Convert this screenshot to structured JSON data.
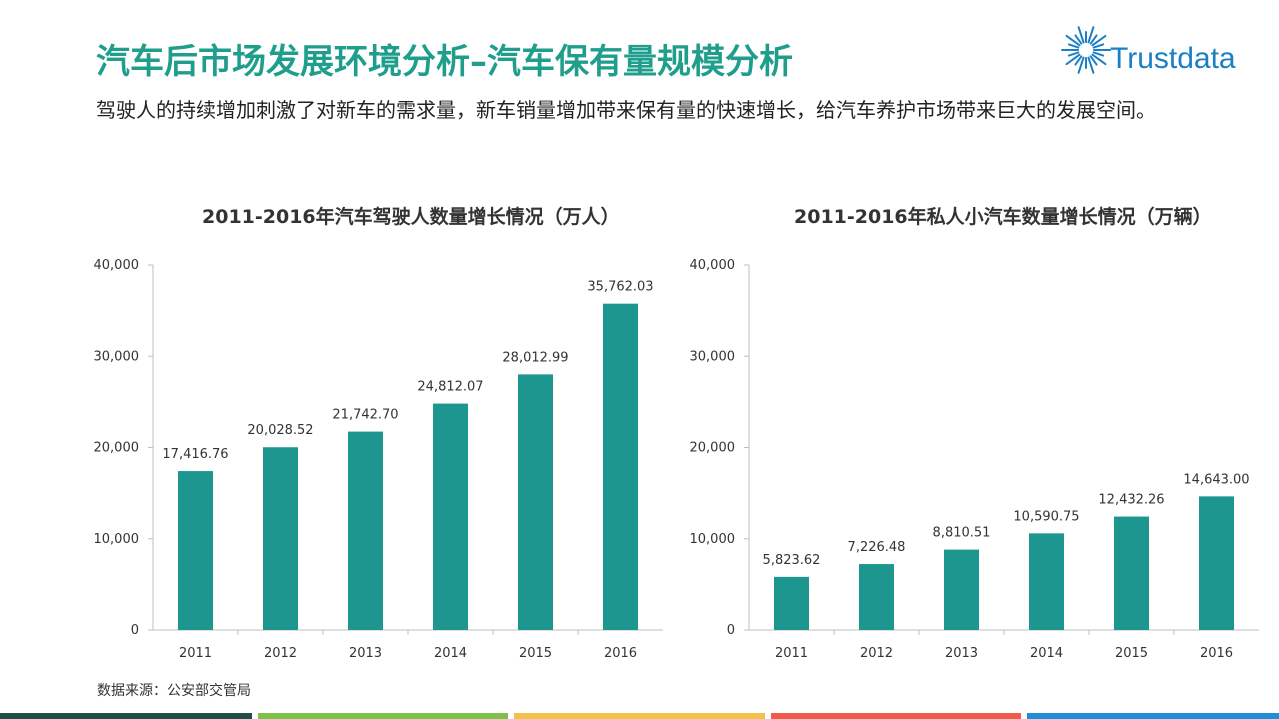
{
  "header": {
    "title": "汽车后市场发展环境分析–汽车保有量规模分析",
    "subtitle": "驾驶人的持续增加刺激了对新车的需求量，新车销量增加带来保有量的快速增长，给汽车养护市场带来巨大的发展空间。"
  },
  "logo": {
    "text": "Trustdata",
    "color": "#1a7fc4"
  },
  "source": "数据来源：公安部交管局",
  "colors": {
    "title": "#1f9e8c",
    "bar": "#1d9690",
    "bottom_bar": [
      "#1e4d4a",
      "#7cc14a",
      "#f3c14a",
      "#ef5a4a",
      "#1e8fd6"
    ]
  },
  "chart_data": [
    {
      "type": "bar",
      "title": "2011-2016年汽车驾驶人数量增长情况（万人）",
      "categories": [
        "2011",
        "2012",
        "2013",
        "2014",
        "2015",
        "2016"
      ],
      "values": [
        17416.76,
        20028.52,
        21742.7,
        24812.07,
        28012.99,
        35762.03
      ],
      "value_labels": [
        "17,416.76",
        "20,028.52",
        "21,742.70",
        "24,812.07",
        "28,012.99",
        "35,762.03"
      ],
      "ylim": [
        0,
        40000
      ],
      "yticks": [
        "0",
        "10,000",
        "20,000",
        "30,000",
        "40,000"
      ],
      "grid": false
    },
    {
      "type": "bar",
      "title": "2011-2016年私人小汽车数量增长情况（万辆）",
      "categories": [
        "2011",
        "2012",
        "2013",
        "2014",
        "2015",
        "2016"
      ],
      "values": [
        5823.62,
        7226.48,
        8810.51,
        10590.75,
        12432.26,
        14643.0
      ],
      "value_labels": [
        "5,823.62",
        "7,226.48",
        "8,810.51",
        "10,590.75",
        "12,432.26",
        "14,643.00"
      ],
      "ylim": [
        0,
        40000
      ],
      "yticks": [
        "0",
        "10,000",
        "20,000",
        "30,000",
        "40,000"
      ],
      "grid": false
    }
  ]
}
